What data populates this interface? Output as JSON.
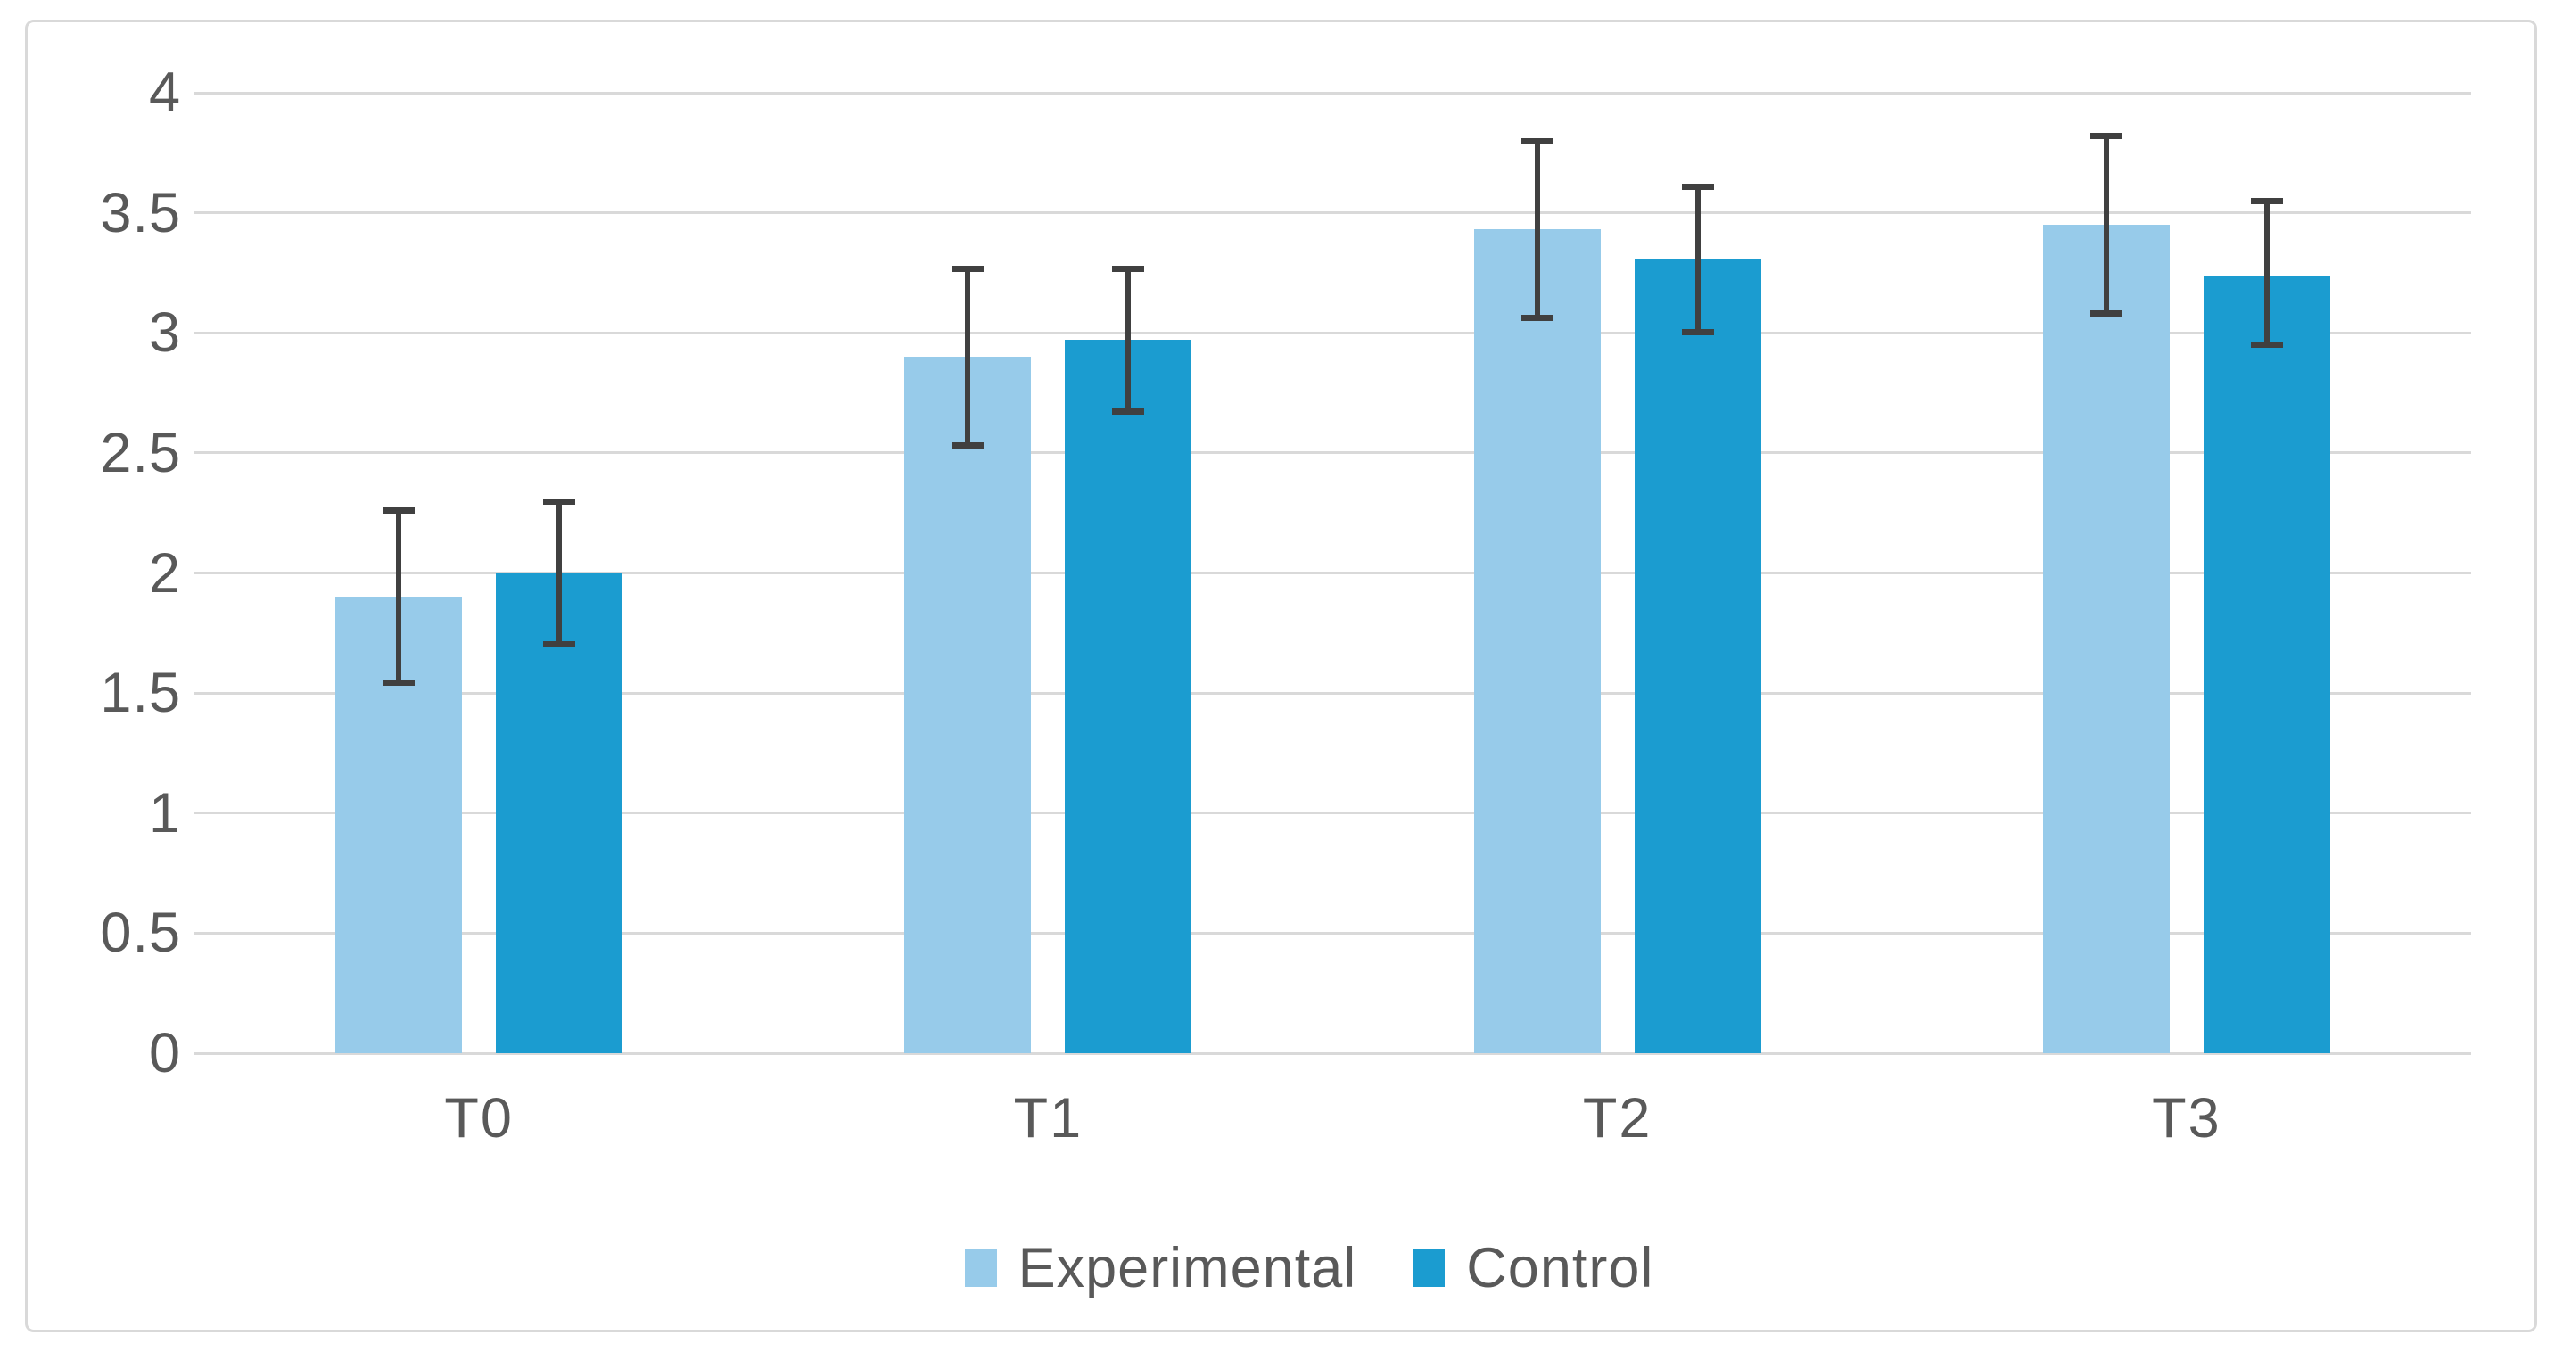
{
  "chart_data": {
    "type": "bar",
    "title": "",
    "categories": [
      "T0",
      "T1",
      "T2",
      "T3"
    ],
    "series": [
      {
        "name": "Experimental",
        "color": "#97CBEA",
        "values": [
          1.9,
          2.9,
          3.43,
          3.45
        ],
        "error_low": [
          1.54,
          2.53,
          3.06,
          3.08
        ],
        "error_high": [
          2.26,
          3.27,
          3.8,
          3.82
        ]
      },
      {
        "name": "Control",
        "color": "#1B9CD0",
        "values": [
          2.0,
          2.97,
          3.31,
          3.24
        ],
        "error_low": [
          1.7,
          2.67,
          3.0,
          2.95
        ],
        "error_high": [
          2.3,
          3.27,
          3.61,
          3.55
        ]
      }
    ],
    "xlabel": "",
    "ylabel": "",
    "ylim": [
      0,
      4
    ],
    "ytick_step": 0.5,
    "yticks": [
      "4",
      "3.5",
      "3",
      "2.5",
      "2",
      "1.5",
      "1",
      "0.5",
      "0"
    ],
    "grid": "horizontal-only",
    "legend_position": "bottom-center",
    "colors": {
      "error_bar": "#404040",
      "gridline": "#D9D9D9",
      "axis_line": "#D9D9D9",
      "text": "#595959",
      "frame_border": "#D9D9D9",
      "background": "#FFFFFF"
    }
  }
}
